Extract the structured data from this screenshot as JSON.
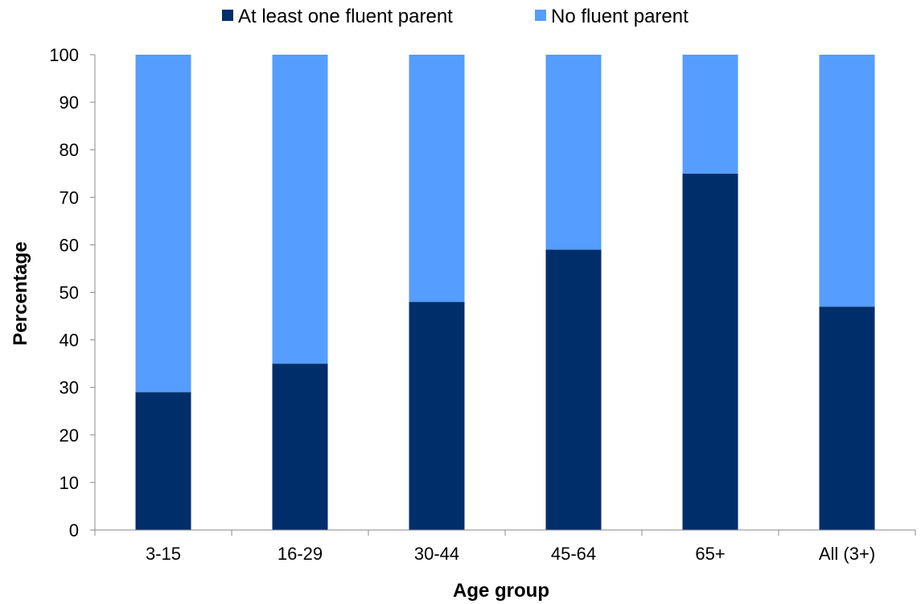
{
  "chart_data": {
    "type": "bar",
    "stacked": true,
    "categories": [
      "3-15",
      "16-29",
      "30-44",
      "45-64",
      "65+",
      "All (3+)"
    ],
    "series": [
      {
        "name": "At least one fluent parent",
        "color": "#002e6a",
        "values": [
          29,
          35,
          48,
          59,
          75,
          47
        ]
      },
      {
        "name": "No fluent parent",
        "color": "#559dfe",
        "values": [
          71,
          65,
          52,
          41,
          25,
          53
        ]
      }
    ],
    "xlabel": "Age group",
    "ylabel": "Percentage",
    "ylim": [
      0,
      100
    ],
    "yticks": [
      0,
      10,
      20,
      30,
      40,
      50,
      60,
      70,
      80,
      90,
      100
    ],
    "grid": false,
    "legend_position": "top"
  }
}
